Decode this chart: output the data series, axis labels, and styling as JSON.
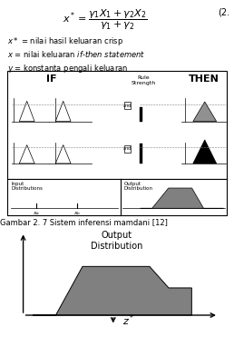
{
  "formula_display": "$x^* = \\dfrac{\\gamma_1 X_1 + \\gamma_2 X_2}{\\gamma_1 + \\gamma_2}$",
  "eq_number": "(2.",
  "desc1": "$x*$ = nilai hasil keluaran crisp",
  "desc2": "$x$ = nilai keluaran $\\mathit{if}$-$\\mathit{then\\ statement}$",
  "desc3": "$\\gamma$ = konstanta pengali keluaran",
  "caption": "Gambar 2. 7 Sistem inferensi mamdani [12]",
  "output_title": "Output\nDistribution",
  "z_label": "$z^*$",
  "bg_color": "#ffffff",
  "shape_color": "#808080",
  "axis_color": "#000000",
  "text_color": "#000000"
}
